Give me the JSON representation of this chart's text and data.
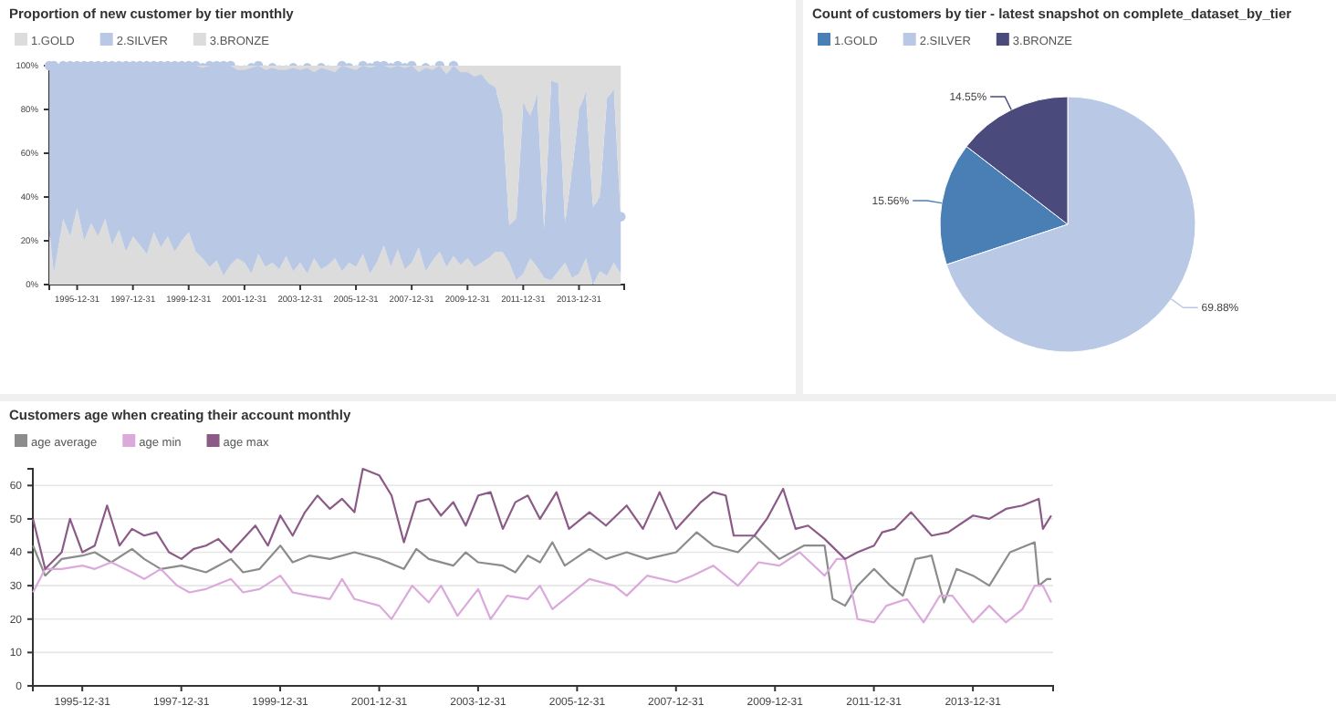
{
  "chart_data": [
    {
      "type": "area",
      "title": "Proportion of new customer by tier monthly",
      "legend": "top left",
      "stacked": true,
      "x": [
        "1995-01",
        "1995-03",
        "1995-07",
        "1995-10",
        "1996-01",
        "1996-04",
        "1996-07",
        "1996-10",
        "1997-01",
        "1997-04",
        "1997-07",
        "1997-10",
        "1998-01",
        "1998-04",
        "1998-07",
        "1998-10",
        "1999-01",
        "1999-04",
        "1999-07",
        "1999-10",
        "2000-01",
        "2000-04",
        "2000-07",
        "2000-10",
        "2001-01",
        "2001-04",
        "2001-07",
        "2001-10",
        "2002-01",
        "2002-04",
        "2002-07",
        "2002-10",
        "2003-01",
        "2003-04",
        "2003-07",
        "2003-10",
        "2004-01",
        "2004-04",
        "2004-07",
        "2004-10",
        "2005-01",
        "2005-04",
        "2005-07",
        "2005-10",
        "2006-01",
        "2006-04",
        "2006-07",
        "2006-10",
        "2007-01",
        "2007-04",
        "2007-07",
        "2007-10",
        "2008-01",
        "2008-04",
        "2008-07",
        "2008-10",
        "2009-01",
        "2009-04",
        "2009-07",
        "2009-10",
        "2010-01",
        "2010-04",
        "2010-07",
        "2010-10",
        "2011-01",
        "2011-04",
        "2011-07",
        "2011-10",
        "2012-01",
        "2012-04",
        "2012-07",
        "2012-10",
        "2013-01",
        "2013-04",
        "2013-07",
        "2013-10",
        "2014-01",
        "2014-04",
        "2014-07",
        "2014-10",
        "2015-01",
        "2015-04",
        "2015-07"
      ],
      "xlim": [
        "1994-12-31",
        "2015-08-15"
      ],
      "xticks": [
        "1995-12-31",
        "1997-12-31",
        "1999-12-31",
        "2001-12-31",
        "2003-12-31",
        "2005-12-31",
        "2007-12-31",
        "2009-12-31",
        "2011-12-31",
        "2013-12-31"
      ],
      "ylim": [
        0,
        100
      ],
      "yticks": [
        {
          "value": 0,
          "label": "0%"
        },
        {
          "value": 20,
          "label": "20%"
        },
        {
          "value": 40,
          "label": "40%"
        },
        {
          "value": 60,
          "label": "60%"
        },
        {
          "value": 80,
          "label": "80%"
        },
        {
          "value": 100,
          "label": "100%"
        }
      ],
      "series": [
        {
          "name": "1.GOLD",
          "color": "#dcdcdc",
          "values": [
            25,
            5,
            30,
            22,
            35,
            20,
            28,
            22,
            30,
            18,
            25,
            15,
            22,
            18,
            14,
            24,
            17,
            22,
            15,
            20,
            24,
            15,
            12,
            8,
            11,
            4,
            9,
            12,
            10,
            5,
            14,
            8,
            10,
            7,
            13,
            6,
            10,
            5,
            12,
            7,
            9,
            12,
            6,
            10,
            8,
            14,
            5,
            10,
            18,
            8,
            16,
            7,
            10,
            17,
            6,
            11,
            15,
            8,
            13,
            9,
            12,
            8,
            10,
            12,
            15,
            15,
            10,
            2,
            5,
            12,
            8,
            3,
            2,
            6,
            10,
            3,
            5,
            12,
            0,
            6,
            4,
            10,
            5
          ]
        },
        {
          "name": "2.SILVER",
          "color": "#b9c9e5",
          "marker": "circle",
          "values": [
            75,
            95,
            70,
            78,
            65,
            80,
            72,
            78,
            70,
            82,
            75,
            85,
            78,
            82,
            86,
            76,
            83,
            78,
            85,
            80,
            76,
            85,
            87,
            92,
            89,
            96,
            91,
            86,
            88,
            94,
            86,
            90,
            89,
            91,
            85,
            93,
            88,
            94,
            85,
            92,
            89,
            85,
            94,
            89,
            90,
            86,
            94,
            90,
            82,
            91,
            84,
            92,
            90,
            80,
            93,
            87,
            85,
            88,
            87,
            88,
            85,
            87,
            86,
            80,
            75,
            63,
            17,
            28,
            78,
            65,
            79,
            22,
            91,
            86,
            18,
            49,
            75,
            76,
            35,
            34,
            81,
            79,
            26
          ]
        },
        {
          "name": "3.BRONZE",
          "color": "#dcdcdc",
          "values": [
            0,
            0,
            0,
            0,
            0,
            0,
            0,
            0,
            0,
            0,
            0,
            0,
            0,
            0,
            0,
            0,
            0,
            0,
            0,
            0,
            0,
            0,
            1,
            0,
            0,
            0,
            0,
            2,
            2,
            1,
            0,
            2,
            1,
            2,
            2,
            1,
            2,
            1,
            3,
            1,
            2,
            3,
            0,
            1,
            2,
            0,
            1,
            0,
            0,
            1,
            0,
            1,
            0,
            3,
            1,
            2,
            0,
            4,
            0,
            3,
            3,
            5,
            4,
            8,
            10,
            22,
            73,
            70,
            17,
            23,
            13,
            75,
            7,
            8,
            72,
            48,
            20,
            12,
            65,
            60,
            15,
            11,
            69
          ]
        }
      ]
    },
    {
      "type": "pie",
      "title": "Count of customers by tier - latest snapshot on complete_dataset_by_tier",
      "legend": "top left",
      "categories": [
        "1.GOLD",
        "2.SILVER",
        "3.BRONZE"
      ],
      "values": [
        15.56,
        69.88,
        14.55
      ],
      "value_labels": [
        "15.56%",
        "69.88%",
        "14.55%"
      ],
      "colors": [
        "#4a7fb5",
        "#b9c9e5",
        "#4a4a7c"
      ]
    },
    {
      "type": "line",
      "title": "Customers age when creating their account monthly",
      "legend": "top left",
      "grid": "y",
      "xlim": [
        "1994-12-31",
        "2015-08-15"
      ],
      "xticks": [
        "1995-12-31",
        "1997-12-31",
        "1999-12-31",
        "2001-12-31",
        "2003-12-31",
        "2005-12-31",
        "2007-12-31",
        "2009-12-31",
        "2011-12-31",
        "2013-12-31"
      ],
      "ylim": [
        0,
        65
      ],
      "yticks": [
        0,
        10,
        20,
        30,
        40,
        50,
        60
      ],
      "series": [
        {
          "name": "age average",
          "color": "#8c8c8c",
          "x": [
            "1995-01",
            "1995-04",
            "1995-08",
            "1996-01",
            "1996-04",
            "1996-08",
            "1997-01",
            "1997-04",
            "1997-08",
            "1998-01",
            "1998-07",
            "1998-10",
            "1999-01",
            "1999-04",
            "1999-08",
            "2000-01",
            "2000-04",
            "2000-08",
            "2001-01",
            "2001-07",
            "2002-01",
            "2002-07",
            "2002-10",
            "2003-01",
            "2003-07",
            "2003-10",
            "2004-01",
            "2004-07",
            "2004-10",
            "2005-01",
            "2005-04",
            "2005-07",
            "2005-10",
            "2006-04",
            "2006-08",
            "2007-01",
            "2007-06",
            "2008-01",
            "2008-06",
            "2008-10",
            "2009-04",
            "2009-08",
            "2010-02",
            "2010-08",
            "2011-01",
            "2011-03",
            "2011-06",
            "2011-09",
            "2012-01",
            "2012-05",
            "2012-08",
            "2012-11",
            "2013-03",
            "2013-06",
            "2013-09",
            "2014-01",
            "2014-05",
            "2014-10",
            "2015-04",
            "2015-05",
            "2015-07",
            "2015-08"
          ],
          "values": [
            42,
            33,
            38,
            39,
            40,
            37,
            41,
            38,
            35,
            36,
            34,
            36,
            38,
            34,
            35,
            42,
            37,
            39,
            38,
            40,
            38,
            35,
            41,
            38,
            36,
            40,
            37,
            36,
            34,
            39,
            37,
            43,
            36,
            41,
            38,
            40,
            38,
            40,
            46,
            42,
            40,
            45,
            38,
            42,
            42,
            26,
            24,
            30,
            35,
            30,
            27,
            38,
            39,
            25,
            35,
            33,
            30,
            40,
            43,
            30,
            32,
            32
          ]
        },
        {
          "name": "age min",
          "color": "#dba9dc",
          "x": [
            "1995-01",
            "1995-04",
            "1995-08",
            "1996-01",
            "1996-04",
            "1996-08",
            "1997-01",
            "1997-04",
            "1997-08",
            "1997-12",
            "1998-03",
            "1998-07",
            "1999-01",
            "1999-04",
            "1999-08",
            "2000-01",
            "2000-04",
            "2000-08",
            "2001-01",
            "2001-04",
            "2001-07",
            "2002-01",
            "2002-04",
            "2002-09",
            "2003-01",
            "2003-04",
            "2003-08",
            "2004-01",
            "2004-04",
            "2004-08",
            "2005-01",
            "2005-04",
            "2005-07",
            "2005-10",
            "2006-04",
            "2006-10",
            "2007-01",
            "2007-06",
            "2008-01",
            "2008-05",
            "2008-10",
            "2009-04",
            "2009-09",
            "2010-02",
            "2010-07",
            "2011-01",
            "2011-04",
            "2011-06",
            "2011-09",
            "2012-01",
            "2012-04",
            "2012-09",
            "2013-01",
            "2013-05",
            "2013-08",
            "2014-01",
            "2014-05",
            "2014-09",
            "2015-01",
            "2015-04",
            "2015-06",
            "2015-08"
          ],
          "values": [
            28,
            35,
            35,
            36,
            35,
            37,
            34,
            32,
            35,
            30,
            28,
            29,
            32,
            28,
            29,
            33,
            28,
            27,
            26,
            32,
            26,
            24,
            20,
            30,
            25,
            30,
            21,
            29,
            20,
            27,
            26,
            30,
            23,
            26,
            32,
            30,
            27,
            33,
            31,
            33,
            36,
            30,
            37,
            36,
            40,
            33,
            38,
            38,
            20,
            19,
            24,
            26,
            19,
            27,
            27,
            19,
            24,
            19,
            23,
            30,
            30,
            25
          ]
        },
        {
          "name": "age max",
          "color": "#8b5a87",
          "x": [
            "1995-01",
            "1995-04",
            "1995-08",
            "1995-10",
            "1996-01",
            "1996-04",
            "1996-07",
            "1996-10",
            "1997-01",
            "1997-04",
            "1997-07",
            "1997-10",
            "1998-01",
            "1998-04",
            "1998-07",
            "1998-10",
            "1999-01",
            "1999-04",
            "1999-07",
            "1999-10",
            "2000-01",
            "2000-04",
            "2000-07",
            "2000-10",
            "2001-01",
            "2001-04",
            "2001-07",
            "2001-09",
            "2002-01",
            "2002-04",
            "2002-07",
            "2002-10",
            "2003-01",
            "2003-04",
            "2003-07",
            "2003-10",
            "2004-01",
            "2004-04",
            "2004-07",
            "2004-10",
            "2005-01",
            "2005-04",
            "2005-08",
            "2005-11",
            "2006-04",
            "2006-08",
            "2007-01",
            "2007-05",
            "2007-09",
            "2008-01",
            "2008-04",
            "2008-07",
            "2008-10",
            "2009-01",
            "2009-03",
            "2009-08",
            "2009-11",
            "2010-03",
            "2010-06",
            "2010-09",
            "2011-01",
            "2011-06",
            "2011-09",
            "2012-01",
            "2012-03",
            "2012-06",
            "2012-10",
            "2013-03",
            "2013-07",
            "2014-01",
            "2014-05",
            "2014-09",
            "2015-01",
            "2015-05",
            "2015-06",
            "2015-08"
          ],
          "values": [
            50,
            35,
            40,
            50,
            40,
            42,
            54,
            42,
            47,
            45,
            46,
            40,
            38,
            41,
            42,
            44,
            40,
            44,
            48,
            42,
            51,
            45,
            52,
            57,
            53,
            56,
            52,
            65,
            63,
            57,
            43,
            55,
            56,
            51,
            55,
            48,
            57,
            58,
            47,
            55,
            57,
            50,
            58,
            47,
            52,
            48,
            54,
            47,
            58,
            47,
            51,
            55,
            58,
            57,
            45,
            45,
            50,
            59,
            47,
            48,
            44,
            38,
            40,
            42,
            46,
            47,
            52,
            45,
            46,
            51,
            50,
            53,
            54,
            56,
            47,
            51
          ]
        }
      ]
    }
  ]
}
